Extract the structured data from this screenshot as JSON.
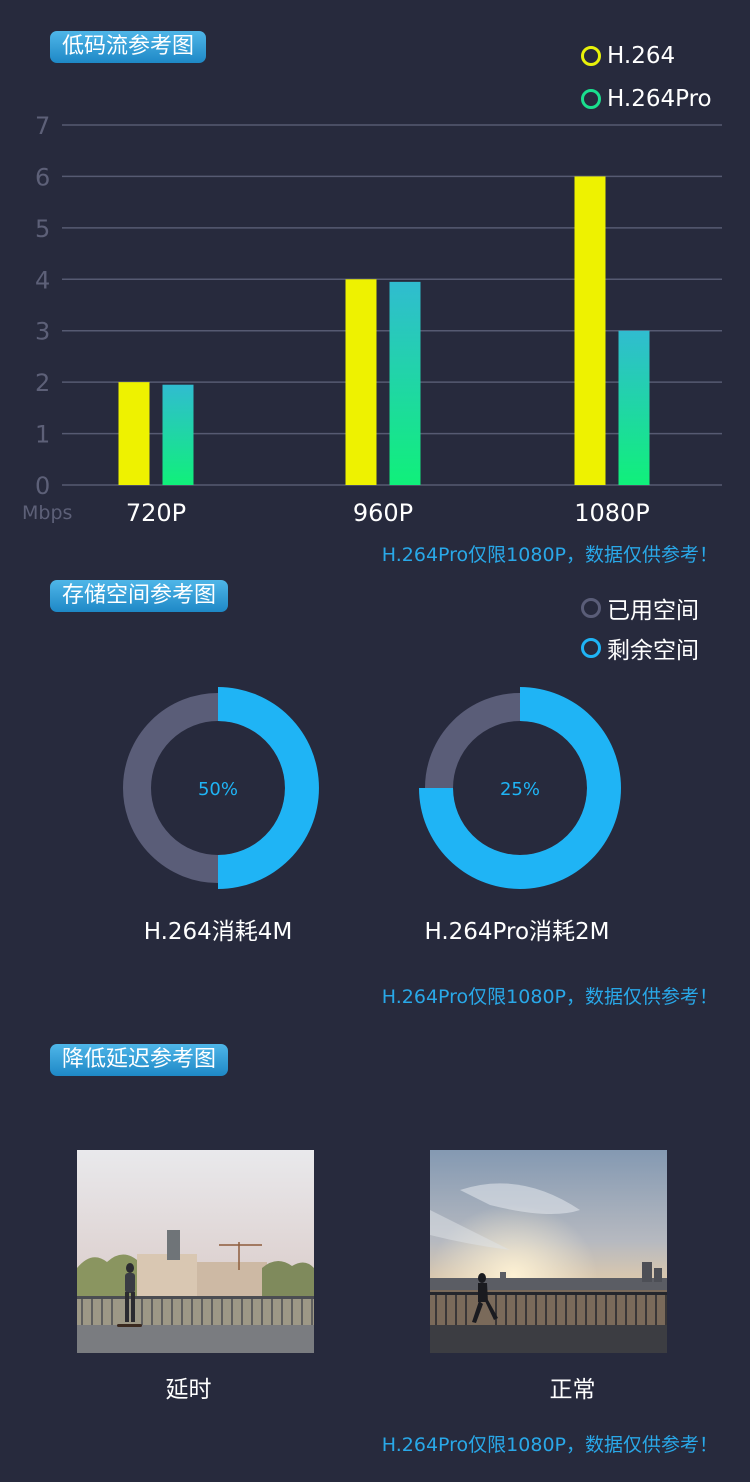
{
  "sections": {
    "bitrate_title": "低码流参考图",
    "storage_title": "存储空间参考图",
    "latency_title": "降低延迟参考图"
  },
  "bitrate_legend": [
    {
      "label": "H.264",
      "color": "#e8f20a"
    },
    {
      "label": "H.264Pro",
      "color": "#1adf8e"
    }
  ],
  "storage_legend": [
    {
      "label": "已用空间",
      "color": "#5a5d78"
    },
    {
      "label": "剩余空间",
      "color": "#1fb4f5"
    }
  ],
  "notes": {
    "bitrate": "H.264Pro仅限1080P，数据仅供参考！",
    "storage": "H.264Pro仅限1080P，数据仅供参考！",
    "latency": "H.264Pro仅限1080P，数据仅供参考！"
  },
  "chart_data": [
    {
      "type": "bar",
      "categories": [
        "720P",
        "960P",
        "1080P"
      ],
      "series": [
        {
          "name": "H.264",
          "values": [
            2,
            4,
            6
          ],
          "color": "#eef200"
        },
        {
          "name": "H.264Pro",
          "values": [
            1.95,
            3.95,
            3.0
          ],
          "color_top": "#30bcd0",
          "color_bottom": "#10f07a"
        }
      ],
      "ylim": [
        0,
        7
      ],
      "yticks": [
        "0",
        "1",
        "2",
        "3",
        "4",
        "5",
        "6",
        "7"
      ],
      "unit": "Mbps",
      "grid": true,
      "legend": "top-right"
    },
    {
      "type": "pie",
      "subtype": "donut",
      "charts": [
        {
          "center_label": "50%",
          "remaining_fraction": 0.5,
          "caption": "H.264消耗4M"
        },
        {
          "center_label": "25%",
          "remaining_fraction": 0.75,
          "caption": "H.264Pro消耗2M"
        }
      ],
      "used_color": "#5a5d78",
      "remaining_color": "#1fb4f5"
    }
  ],
  "photos": [
    {
      "caption": "延时"
    },
    {
      "caption": "正常"
    }
  ]
}
